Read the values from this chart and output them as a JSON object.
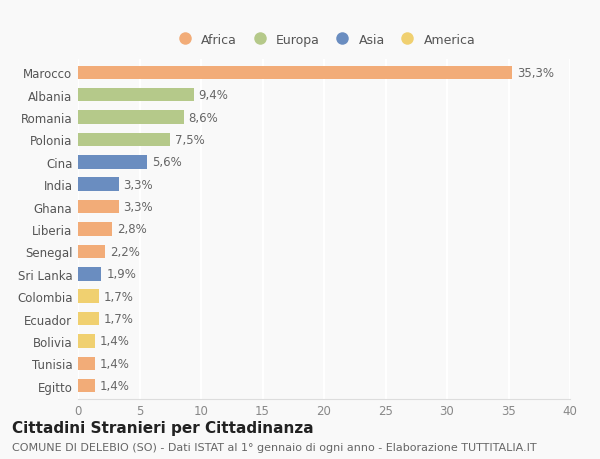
{
  "countries": [
    "Marocco",
    "Albania",
    "Romania",
    "Polonia",
    "Cina",
    "India",
    "Ghana",
    "Liberia",
    "Senegal",
    "Sri Lanka",
    "Colombia",
    "Ecuador",
    "Bolivia",
    "Tunisia",
    "Egitto"
  ],
  "values": [
    35.3,
    9.4,
    8.6,
    7.5,
    5.6,
    3.3,
    3.3,
    2.8,
    2.2,
    1.9,
    1.7,
    1.7,
    1.4,
    1.4,
    1.4
  ],
  "continents": [
    "Africa",
    "Europa",
    "Europa",
    "Europa",
    "Asia",
    "Asia",
    "Africa",
    "Africa",
    "Africa",
    "Asia",
    "America",
    "America",
    "America",
    "Africa",
    "Africa"
  ],
  "colors": {
    "Africa": "#F2AC78",
    "Europa": "#B5C98A",
    "Asia": "#6A8DC0",
    "America": "#F0D070"
  },
  "xlim": [
    0,
    40
  ],
  "xticks": [
    0,
    5,
    10,
    15,
    20,
    25,
    30,
    35,
    40
  ],
  "title": "Cittadini Stranieri per Cittadinanza",
  "subtitle": "COMUNE DI DELEBIO (SO) - Dati ISTAT al 1° gennaio di ogni anno - Elaborazione TUTTITALIA.IT",
  "background_color": "#f9f9f9",
  "bar_height": 0.6,
  "label_fontsize": 8.5,
  "tick_fontsize": 8.5,
  "title_fontsize": 11,
  "subtitle_fontsize": 8
}
